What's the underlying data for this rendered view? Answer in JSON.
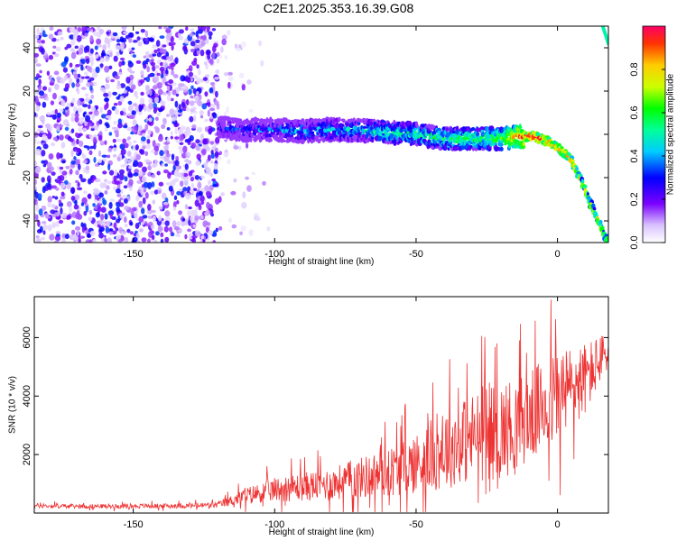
{
  "title": "C2E1.2025.353.16.39.G08",
  "chart_data": [
    {
      "type": "heatmap",
      "xlabel": "Height of straight line (km)",
      "ylabel": "Frequency (Hz)",
      "xlim": [
        -185,
        18
      ],
      "ylim": [
        -50,
        50
      ],
      "xticks": [
        -150,
        -100,
        -50,
        0
      ],
      "yticks": [
        -40,
        -20,
        0,
        20,
        40
      ],
      "colorbar": {
        "label": "Normalized spectral amplitude",
        "range": [
          0,
          1
        ],
        "ticks": [
          "0.0",
          "0.2",
          "0.4",
          "0.6",
          "0.8"
        ],
        "tick_values": [
          0.0,
          0.2,
          0.4,
          0.6,
          0.8
        ]
      },
      "noise_region": {
        "x_from": -185,
        "x_to": -120,
        "y_from": -50,
        "y_to": 50,
        "amplitude": [
          0.05,
          0.35
        ]
      },
      "signal_track": {
        "x": [
          -120,
          -110,
          -100,
          -90,
          -80,
          -70,
          -60,
          -50,
          -40,
          -30,
          -20,
          -12,
          -8,
          -4,
          0,
          4,
          8,
          12,
          16,
          18
        ],
        "y": [
          3,
          2,
          2,
          1.5,
          2,
          2,
          1,
          0,
          -2,
          -2,
          -2,
          -1,
          -1,
          -3,
          -6,
          -10,
          -20,
          -33,
          -45,
          -50
        ],
        "amplitude": [
          0.3,
          0.3,
          0.35,
          0.4,
          0.4,
          0.45,
          0.5,
          0.5,
          0.55,
          0.55,
          0.6,
          0.9,
          0.95,
          0.9,
          0.85,
          0.8,
          0.75,
          0.7,
          0.7,
          0.7
        ]
      },
      "upper_branch": {
        "x": [
          16,
          18
        ],
        "y": [
          50,
          42
        ],
        "amplitude": 0.5
      }
    },
    {
      "type": "line",
      "xlabel": "Height of straight line (km)",
      "ylabel": "SNR (10 * v/v)",
      "xlim": [
        -185,
        18
      ],
      "ylim": [
        0,
        7400
      ],
      "xticks": [
        -150,
        -100,
        -50,
        0
      ],
      "yticks": [
        2000,
        4000,
        6000
      ],
      "color": "#ee3333",
      "series": [
        {
          "name": "SNR",
          "x": [
            -185,
            -170,
            -150,
            -130,
            -120,
            -110,
            -100,
            -90,
            -80,
            -70,
            -60,
            -50,
            -40,
            -30,
            -20,
            -10,
            0,
            10,
            18
          ],
          "y": [
            250,
            230,
            240,
            250,
            280,
            600,
            800,
            900,
            1000,
            1200,
            1400,
            1700,
            2200,
            2600,
            2800,
            3300,
            4000,
            4600,
            5600
          ],
          "spread": [
            120,
            100,
            110,
            120,
            150,
            400,
            600,
            700,
            800,
            1000,
            1200,
            1500,
            2000,
            2200,
            2400,
            2200,
            2400,
            1800,
            900
          ]
        }
      ]
    }
  ]
}
